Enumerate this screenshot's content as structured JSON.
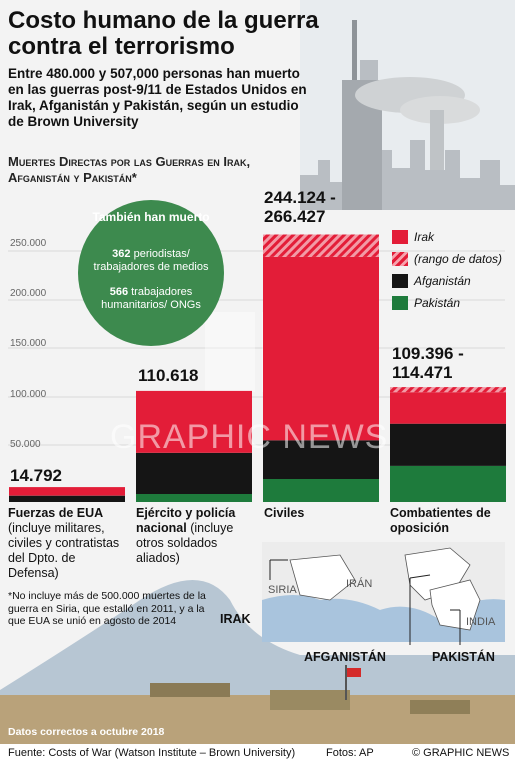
{
  "title": "Costo humano de la guerra contra el terrorismo",
  "subtitle": "Entre 480.000 y 507,000 personas han muerto en las guerras post-9/11 de Estados Unidos en Irak, Afganistán y Pakistán, según un estudio de Brown University",
  "chart_heading": "Muertes Directas por las Guerras en Irak, Afganistán y Pakistán*",
  "callout": {
    "title": "También han muerto",
    "journalists_count": "362",
    "journalists_text": "periodistas/ trabajadores de medios",
    "aid_count": "566",
    "aid_text": "trabajadores humanitarios/ ONGs"
  },
  "legend": {
    "irak": "Irak",
    "range": "(rango de datos)",
    "afganistan": "Afganistán",
    "pakistan": "Pakistán"
  },
  "colors": {
    "irak": "#e31d38",
    "afganistan": "#151515",
    "pakistan": "#1e7b3c",
    "circle": "#3d8a4e"
  },
  "chart_data": {
    "type": "bar",
    "stacked": true,
    "ylim": [
      0,
      270000
    ],
    "yticks": [
      "50.000",
      "100.000",
      "150.000",
      "200.000",
      "250.000"
    ],
    "ytick_values": [
      50000,
      100000,
      150000,
      200000,
      250000
    ],
    "categories": [
      {
        "name": "Fuerzas de EUA",
        "note": "(incluye militares, civiles y contratistas del Dpto. de Defensa)",
        "label": "14.792"
      },
      {
        "name": "Ejército y policía nacional",
        "note": "(incluye otros soldados aliados)",
        "label": "110.618"
      },
      {
        "name": "Civiles",
        "note": "",
        "label": "244.124 - 266.427"
      },
      {
        "name": "Combatientes de oposición",
        "note": "",
        "label": "109.396 - 114.471"
      }
    ],
    "series": [
      {
        "name": "Pakistán",
        "values": [
          0,
          8000,
          23000,
          36000
        ]
      },
      {
        "name": "Afganistán",
        "values": [
          6300,
          41000,
          38500,
          42000
        ]
      },
      {
        "name": "Irak",
        "values": [
          8492,
          61618,
          182624,
          31396
        ]
      },
      {
        "name": "(rango de datos)",
        "values": [
          0,
          0,
          22303,
          5075
        ]
      }
    ]
  },
  "footnote": "*No incluye más de 500.000 muertes de la guerra en Siria, que estalló en 2011, y a la que EUA se unió en agosto de 2014",
  "map": {
    "siria": "SIRIA",
    "iran": "IRÁN",
    "india": "INDIA",
    "irak": "IRAK",
    "afganistan": "AFGANISTÁN",
    "pakistan": "PAKISTÁN"
  },
  "data_note": "Datos correctos a octubre 2018",
  "source": "Fuente: Costs of War (Watson Institute – Brown University)",
  "photos": "Fotos: AP",
  "brand": "© GRAPHIC NEWS",
  "watermark": "GRAPHIC NEWS"
}
